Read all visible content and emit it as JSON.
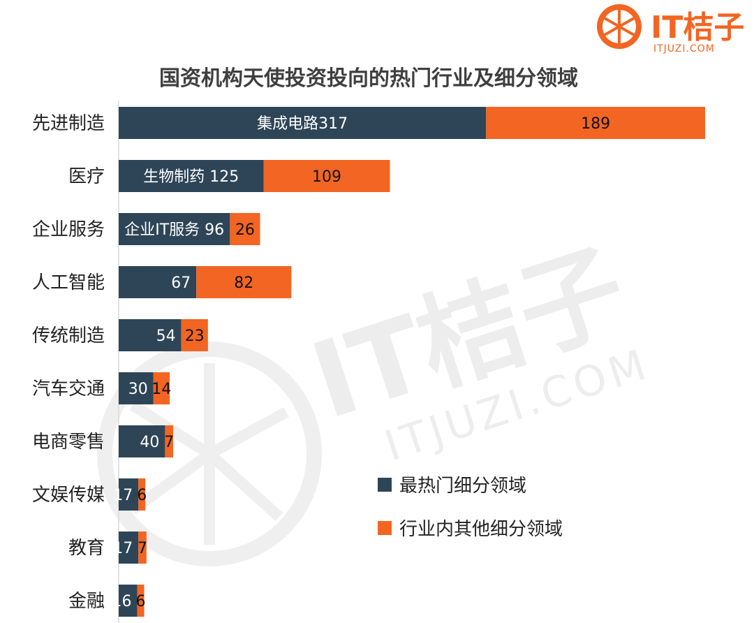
{
  "logo": {
    "main": "IT桔子",
    "sub": "ITJUZI.COM"
  },
  "watermark": {
    "main": "IT桔子",
    "sub": "ITJUZI.COM"
  },
  "colors": {
    "hot": "#2e4557",
    "other": "#f26522",
    "text": "#222222",
    "title": "#3f3f3f"
  },
  "chart_data": {
    "type": "bar",
    "orientation": "horizontal",
    "stacked": true,
    "title": "国资机构天使投资投向的热门行业及细分领域",
    "categories": [
      "先进制造",
      "医疗",
      "企业服务",
      "人工智能",
      "传统制造",
      "汽车交通",
      "电商零售",
      "文娱传媒",
      "教育",
      "金融"
    ],
    "series": [
      {
        "name": "最热门细分领域",
        "values": [
          317,
          125,
          96,
          67,
          54,
          30,
          40,
          17,
          17,
          16
        ],
        "labels": [
          "集成电路317",
          "生物制药 125",
          "企业IT服务 96",
          "67",
          "54",
          "30",
          "40",
          "17",
          "17",
          "16"
        ]
      },
      {
        "name": "行业内其他细分领域",
        "values": [
          189,
          109,
          26,
          82,
          23,
          14,
          7,
          6,
          7,
          6
        ],
        "labels": [
          "189",
          "109",
          "26",
          "82",
          "23",
          "14",
          "7",
          "6",
          "7",
          "6"
        ]
      }
    ],
    "xlim": [
      0,
      506
    ],
    "grid": false,
    "legend_position": "right-middle"
  }
}
